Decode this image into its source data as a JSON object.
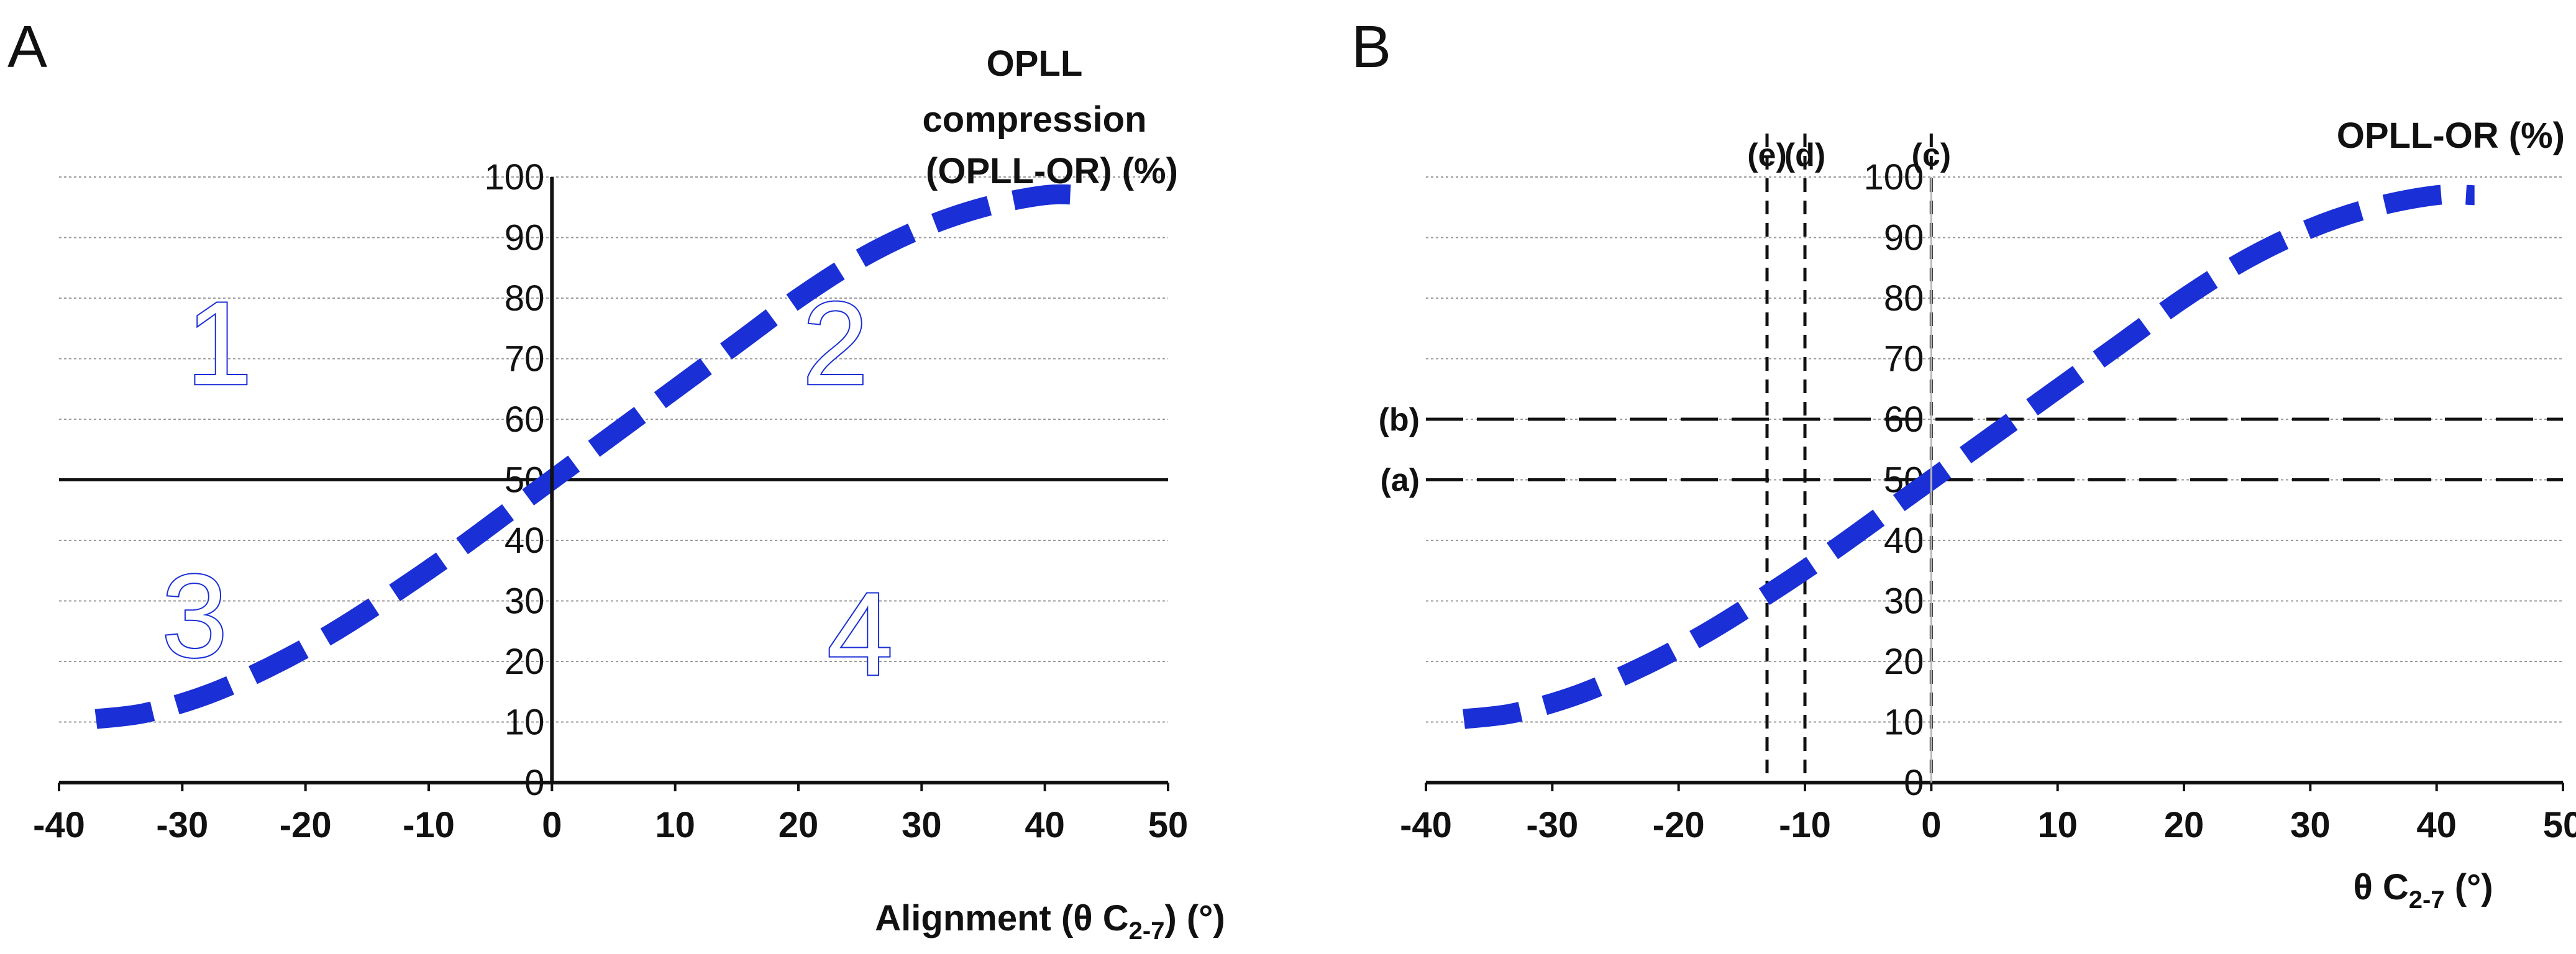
{
  "chart_data": [
    {
      "panel": "A",
      "type": "line",
      "title_lines": [
        "OPLL",
        "compression",
        "(OPLL-OR) (%)"
      ],
      "xlabel": "Alignment (θ C2-7) (°)",
      "xlabel_parts": {
        "prefix": "Alignment (θ C",
        "sub": "2-7",
        "suffix": ") (°)"
      },
      "xlim": [
        -40,
        50
      ],
      "ylim": [
        0,
        100
      ],
      "xticks": [
        "-40",
        "-30",
        "-20",
        "-10",
        "0",
        "10",
        "20",
        "30",
        "40",
        "50"
      ],
      "yticks": [
        "0",
        "10",
        "20",
        "30",
        "40",
        "50",
        "60",
        "70",
        "80",
        "90",
        "100"
      ],
      "grid": true,
      "series": [
        {
          "name": "OPLL-OR curve",
          "style": "dashed",
          "color": "#1a2fd6",
          "x": [
            -37,
            -33,
            -28,
            -23,
            -18,
            -13,
            -8,
            -3,
            0,
            5,
            10,
            15,
            20,
            25,
            30,
            35,
            40,
            43
          ],
          "y": [
            10.5,
            11.5,
            14.5,
            19,
            24.5,
            31,
            38,
            45.5,
            50,
            57.5,
            65,
            72.5,
            80,
            86.5,
            91.5,
            95,
            97,
            97
          ]
        }
      ],
      "reference_lines": [
        {
          "orientation": "horizontal",
          "value": 50,
          "style": "solid"
        },
        {
          "orientation": "vertical",
          "value": 0,
          "style": "solid"
        }
      ],
      "quadrant_labels": [
        {
          "text": "1",
          "x": -27,
          "y": 73
        },
        {
          "text": "2",
          "x": 23,
          "y": 73
        },
        {
          "text": "3",
          "x": -29,
          "y": 28
        },
        {
          "text": "4",
          "x": 25,
          "y": 25
        }
      ]
    },
    {
      "panel": "B",
      "type": "line",
      "title_lines": [
        "OPLL-OR (%)"
      ],
      "xlabel": "θ C2-7 (°)",
      "xlabel_parts": {
        "prefix": "θ C",
        "sub": "2-7",
        "suffix": " (°)"
      },
      "xlim": [
        -40,
        50
      ],
      "ylim": [
        0,
        100
      ],
      "xticks": [
        "-40",
        "-30",
        "-20",
        "-10",
        "0",
        "10",
        "20",
        "30",
        "40",
        "50"
      ],
      "yticks": [
        "0",
        "10",
        "20",
        "30",
        "40",
        "50",
        "60",
        "70",
        "80",
        "90",
        "100"
      ],
      "grid": true,
      "series": [
        {
          "name": "OPLL-OR curve",
          "style": "dashed",
          "color": "#1a2fd6",
          "x": [
            -37,
            -33,
            -28,
            -23,
            -18,
            -13,
            -8,
            -3,
            0,
            5,
            10,
            15,
            20,
            25,
            30,
            35,
            40,
            43
          ],
          "y": [
            10.5,
            11.5,
            14.5,
            19,
            24.5,
            31,
            38,
            45.5,
            50,
            57.5,
            65,
            72.5,
            80,
            86.5,
            91.5,
            95,
            97,
            97
          ]
        }
      ],
      "reference_lines": [
        {
          "orientation": "horizontal",
          "value": 50,
          "label": "(a)",
          "style": "dashed"
        },
        {
          "orientation": "horizontal",
          "value": 60,
          "label": "(b)",
          "style": "dashed"
        },
        {
          "orientation": "vertical",
          "value": 0,
          "label": "(c)",
          "style": "dashed"
        },
        {
          "orientation": "vertical",
          "value": -10,
          "label": "(d)",
          "style": "dashed"
        },
        {
          "orientation": "vertical",
          "value": -13,
          "label": "(e)",
          "style": "dashed"
        }
      ]
    }
  ]
}
